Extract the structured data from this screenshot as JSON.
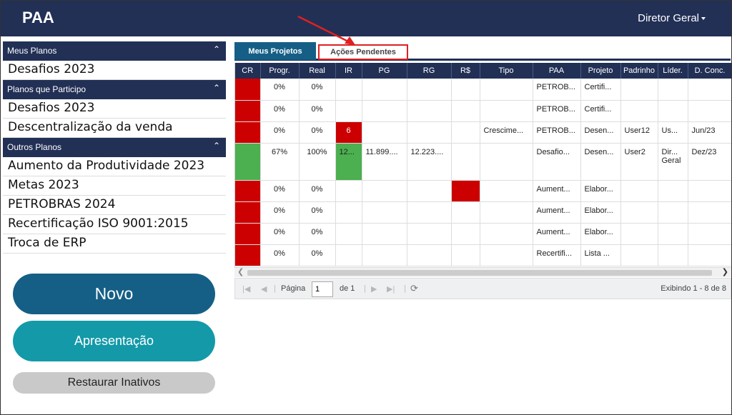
{
  "app": {
    "title": "PAA",
    "user": "Diretor Geral"
  },
  "sidebar": {
    "sections": [
      {
        "title": "Meus Planos",
        "items": [
          "Desafios 2023"
        ]
      },
      {
        "title": "Planos que Participo",
        "items": [
          "Desafios 2023",
          "Descentralização da venda"
        ]
      },
      {
        "title": "Outros Planos",
        "items": [
          "Aumento da Produtividade 2023",
          "Metas 2023",
          "PETROBRAS 2024",
          "Recertificação ISO 9001:2015",
          "Troca de ERP"
        ]
      }
    ],
    "buttons": {
      "novo": "Novo",
      "apresentacao": "Apresentação",
      "restaurar": "Restaurar Inativos"
    }
  },
  "tabs": {
    "active": "Meus Projetos",
    "pending": "Ações Pendentes"
  },
  "grid": {
    "columns": [
      "CR",
      "Progr.",
      "Real",
      "IR",
      "PG",
      "RG",
      "R$",
      "Tipo",
      "PAA",
      "Projeto",
      "Padrinho",
      "Líder.",
      "D. Conc."
    ],
    "rows": [
      {
        "cr": "red",
        "progr": "0%",
        "real": "0%",
        "ir": "",
        "ir_color": "",
        "pg": "",
        "rg": "",
        "rs_color": "",
        "tipo": "",
        "paa": "PETROB...",
        "projeto": "Certifi...",
        "padrinho": "",
        "lider": "",
        "dconc": ""
      },
      {
        "cr": "red",
        "progr": "0%",
        "real": "0%",
        "ir": "",
        "ir_color": "",
        "pg": "",
        "rg": "",
        "rs_color": "",
        "tipo": "",
        "paa": "PETROB...",
        "projeto": "Certifi...",
        "padrinho": "",
        "lider": "",
        "dconc": ""
      },
      {
        "cr": "red",
        "progr": "0%",
        "real": "0%",
        "ir": "6",
        "ir_color": "red",
        "pg": "",
        "rg": "",
        "rs_color": "",
        "tipo": "Crescime...",
        "paa": "PETROB...",
        "projeto": "Desen...",
        "padrinho": "User12",
        "lider": "Us...",
        "dconc": "Jun/23"
      },
      {
        "cr": "green",
        "progr": "67%",
        "real": "100%",
        "ir": "12...",
        "ir_color": "green",
        "pg": "11.899....",
        "rg": "12.223....",
        "rs_color": "",
        "tipo": "",
        "paa": "Desafio...",
        "projeto": "Desen...",
        "padrinho": "User2",
        "lider": "Dir... Geral",
        "dconc": "Dez/23"
      },
      {
        "cr": "red",
        "progr": "0%",
        "real": "0%",
        "ir": "",
        "ir_color": "",
        "pg": "",
        "rg": "",
        "rs_color": "red",
        "tipo": "",
        "paa": "Aument...",
        "projeto": "Elabor...",
        "padrinho": "",
        "lider": "",
        "dconc": ""
      },
      {
        "cr": "red",
        "progr": "0%",
        "real": "0%",
        "ir": "",
        "ir_color": "",
        "pg": "",
        "rg": "",
        "rs_color": "",
        "tipo": "",
        "paa": "Aument...",
        "projeto": "Elabor...",
        "padrinho": "",
        "lider": "",
        "dconc": ""
      },
      {
        "cr": "red",
        "progr": "0%",
        "real": "0%",
        "ir": "",
        "ir_color": "",
        "pg": "",
        "rg": "",
        "rs_color": "",
        "tipo": "",
        "paa": "Aument...",
        "projeto": "Elabor...",
        "padrinho": "",
        "lider": "",
        "dconc": ""
      },
      {
        "cr": "red",
        "progr": "0%",
        "real": "0%",
        "ir": "",
        "ir_color": "",
        "pg": "",
        "rg": "",
        "rs_color": "",
        "tipo": "",
        "paa": "Recertifi...",
        "projeto": "Lista ...",
        "padrinho": "",
        "lider": "",
        "dconc": ""
      }
    ]
  },
  "pager": {
    "page_label": "Página",
    "page_value": "1",
    "of_label": "de 1",
    "info": "Exibindo 1 - 8 de 8"
  },
  "colors": {
    "navy": "#223056",
    "tab_blue": "#155f86",
    "teal": "#1399a8",
    "red": "#cc0000",
    "green": "#4caf50",
    "annotation": "#e02020"
  }
}
